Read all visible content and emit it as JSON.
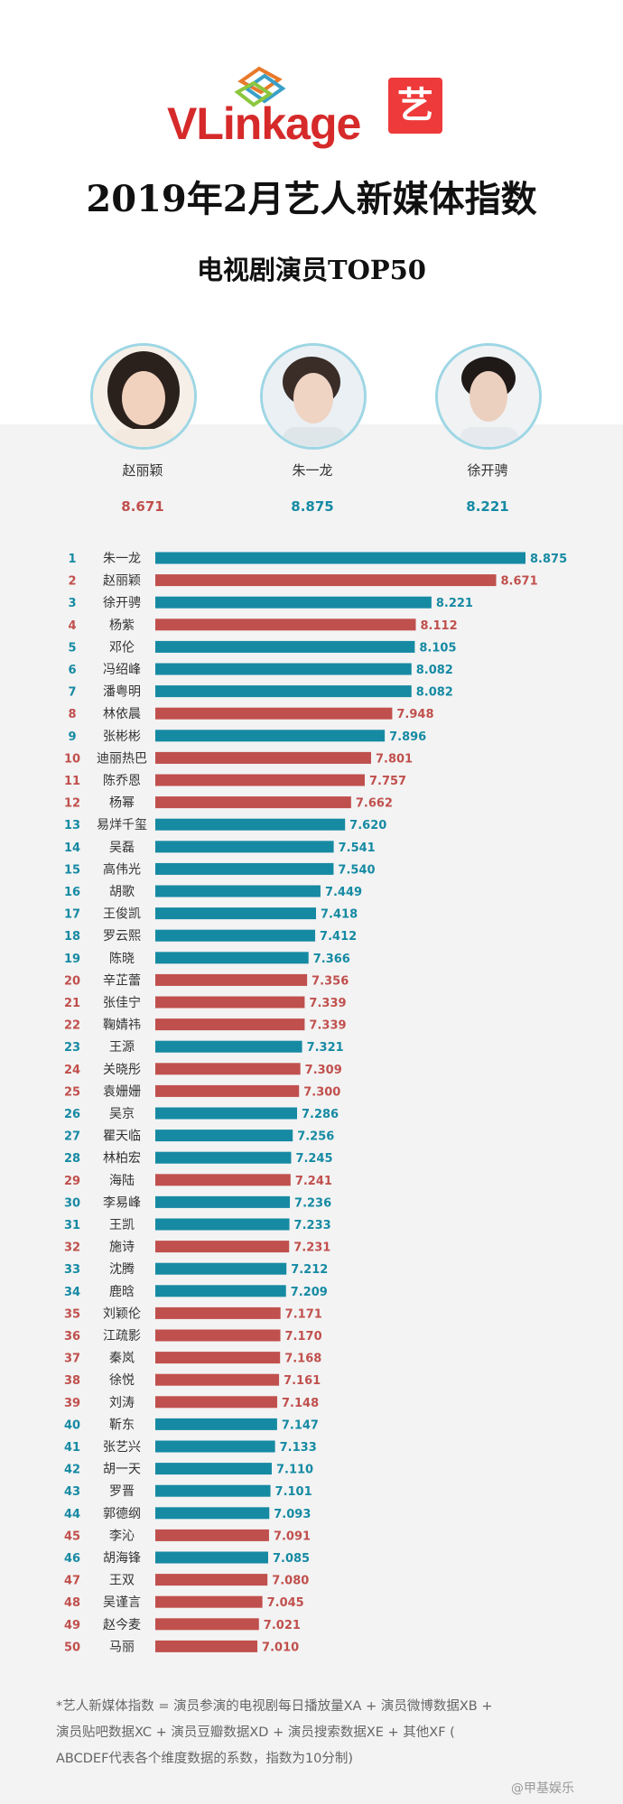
{
  "brand": {
    "logo_text": "VLinkage",
    "badge_text": "艺"
  },
  "title": "2019年2月艺人新媒体指数",
  "subtitle": "电视剧演员TOP50",
  "top3": [
    {
      "name": "赵丽颖",
      "score": "8.671",
      "color": "#c0504d"
    },
    {
      "name": "朱一龙",
      "score": "8.875",
      "color": "#168aa3"
    },
    {
      "name": "徐开骋",
      "score": "8.221",
      "color": "#168aa3"
    }
  ],
  "chart_data": {
    "type": "bar",
    "orientation": "horizontal",
    "title": "",
    "xlabel": "",
    "ylabel": "",
    "grid": false,
    "colors": {
      "male": "#168aa3",
      "female": "#c0504d"
    },
    "ranks": [
      "1",
      "2",
      "3",
      "4",
      "5",
      "6",
      "7",
      "8",
      "9",
      "10",
      "11",
      "12",
      "13",
      "14",
      "15",
      "16",
      "17",
      "18",
      "19",
      "20",
      "21",
      "22",
      "23",
      "24",
      "25",
      "26",
      "27",
      "28",
      "29",
      "30",
      "31",
      "32",
      "33",
      "34",
      "35",
      "36",
      "37",
      "38",
      "39",
      "40",
      "41",
      "42",
      "43",
      "44",
      "45",
      "46",
      "47",
      "48",
      "49",
      "50"
    ],
    "categories": [
      "朱一龙",
      "赵丽颖",
      "徐开骋",
      "杨紫",
      "邓伦",
      "冯绍峰",
      "潘粤明",
      "林依晨",
      "张彬彬",
      "迪丽热巴",
      "陈乔恩",
      "杨幂",
      "易烊千玺",
      "吴磊",
      "高伟光",
      "胡歌",
      "王俊凯",
      "罗云熙",
      "陈晓",
      "辛芷蕾",
      "张佳宁",
      "鞠婧祎",
      "王源",
      "关晓彤",
      "袁姗姗",
      "吴京",
      "瞿天临",
      "林柏宏",
      "海陆",
      "李易峰",
      "王凯",
      "施诗",
      "沈腾",
      "鹿晗",
      "刘颖伦",
      "江疏影",
      "秦岚",
      "徐悦",
      "刘涛",
      "靳东",
      "张艺兴",
      "胡一天",
      "罗晋",
      "郭德纲",
      "李沁",
      "胡海锋",
      "王双",
      "吴谨言",
      "赵今麦",
      "马丽"
    ],
    "values": [
      8.875,
      8.671,
      8.221,
      8.112,
      8.105,
      8.082,
      8.082,
      7.948,
      7.896,
      7.801,
      7.757,
      7.662,
      7.62,
      7.541,
      7.54,
      7.449,
      7.418,
      7.412,
      7.366,
      7.356,
      7.339,
      7.339,
      7.321,
      7.309,
      7.3,
      7.286,
      7.256,
      7.245,
      7.241,
      7.236,
      7.233,
      7.231,
      7.212,
      7.209,
      7.171,
      7.17,
      7.168,
      7.161,
      7.148,
      7.147,
      7.133,
      7.11,
      7.101,
      7.093,
      7.091,
      7.085,
      7.08,
      7.045,
      7.021,
      7.01
    ],
    "value_labels": [
      "8.875",
      "8.671",
      "8.221",
      "8.112",
      "8.105",
      "8.082",
      "8.082",
      "7.948",
      "7.896",
      "7.801",
      "7.757",
      "7.662",
      "7.620",
      "7.541",
      "7.540",
      "7.449",
      "7.418",
      "7.412",
      "7.366",
      "7.356",
      "7.339",
      "7.339",
      "7.321",
      "7.309",
      "7.300",
      "7.286",
      "7.256",
      "7.245",
      "7.241",
      "7.236",
      "7.233",
      "7.231",
      "7.212",
      "7.209",
      "7.171",
      "7.170",
      "7.168",
      "7.161",
      "7.148",
      "7.147",
      "7.133",
      "7.110",
      "7.101",
      "7.093",
      "7.091",
      "7.085",
      "7.080",
      "7.045",
      "7.021",
      "7.010"
    ],
    "genders": [
      "M",
      "F",
      "M",
      "F",
      "M",
      "M",
      "M",
      "F",
      "M",
      "F",
      "F",
      "F",
      "M",
      "M",
      "M",
      "M",
      "M",
      "M",
      "M",
      "F",
      "F",
      "F",
      "M",
      "F",
      "F",
      "M",
      "M",
      "M",
      "F",
      "M",
      "M",
      "F",
      "M",
      "M",
      "F",
      "F",
      "F",
      "F",
      "F",
      "M",
      "M",
      "M",
      "M",
      "M",
      "F",
      "M",
      "F",
      "F",
      "F",
      "F"
    ]
  },
  "footer": {
    "line1": "*艺人新媒体指数 = 演员参演的电视剧每日播放量XA + 演员微博数据XB +",
    "line2": "演员贴吧数据XC + 演员豆瓣数据XD + 演员搜索数据XE + 其他XF (",
    "line3": "ABCDEF代表各个维度数据的系数，指数为10分制)"
  },
  "watermark": "@甲基娱乐"
}
